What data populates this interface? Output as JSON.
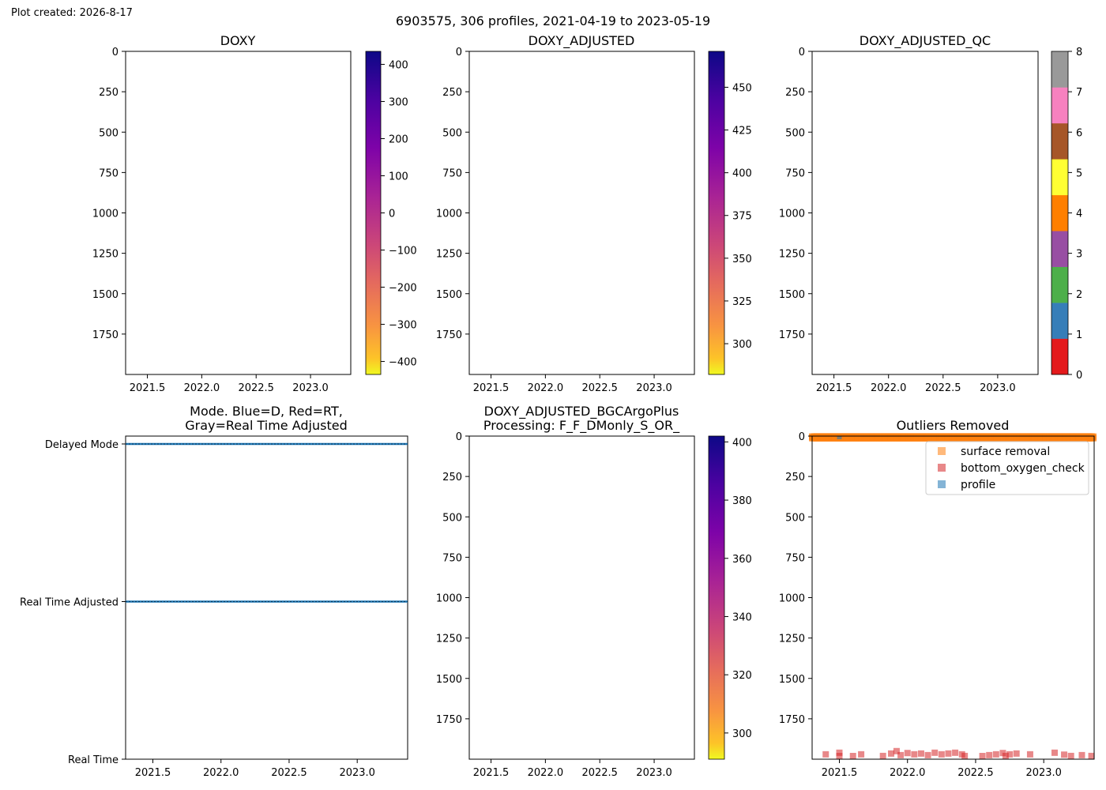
{
  "created": "Plot created: 2026-8-17",
  "suptitle": "6903575, 306 profiles, 2021-04-19 to 2023-05-19",
  "colors": {
    "mode_line": "#1f77b4",
    "surface_removal": "#ff7f0e",
    "bottom_oxygen_check": "#d62728",
    "profile": "#1f77b4",
    "qc_palette": [
      "#e41a1c",
      "#377eb8",
      "#4daf4a",
      "#984ea3",
      "#ff7f00",
      "#ffff33",
      "#a65628",
      "#f781bf",
      "#999999"
    ]
  },
  "chart_data": [
    {
      "id": "doxy",
      "type": "heatmap",
      "title": "DOXY",
      "x_ticks": [
        "2021.5",
        "2022.0",
        "2022.5",
        "2023.0"
      ],
      "x_tick_values": [
        2021.5,
        2022.0,
        2022.5,
        2023.0
      ],
      "xlim": [
        2021.3,
        2023.37
      ],
      "y_ticks": [
        "0",
        "250",
        "500",
        "750",
        "1000",
        "1250",
        "1500",
        "1750"
      ],
      "y_tick_values": [
        0,
        250,
        500,
        750,
        1000,
        1250,
        1500,
        1750
      ],
      "ylim": [
        2000,
        0
      ],
      "colorbar": {
        "colormap": "plasma_r",
        "range": [
          -435,
          435
        ],
        "ticks": [
          "400",
          "300",
          "200",
          "100",
          "0",
          "−100",
          "−200",
          "−300",
          "−400"
        ],
        "tick_values": [
          400,
          300,
          200,
          100,
          0,
          -100,
          -200,
          -300,
          -400
        ]
      }
    },
    {
      "id": "doxy_adjusted",
      "type": "heatmap",
      "title": "DOXY_ADJUSTED",
      "x_ticks": [
        "2021.5",
        "2022.0",
        "2022.5",
        "2023.0"
      ],
      "x_tick_values": [
        2021.5,
        2022.0,
        2022.5,
        2023.0
      ],
      "xlim": [
        2021.3,
        2023.37
      ],
      "y_ticks": [
        "0",
        "250",
        "500",
        "750",
        "1000",
        "1250",
        "1500",
        "1750"
      ],
      "y_tick_values": [
        0,
        250,
        500,
        750,
        1000,
        1250,
        1500,
        1750
      ],
      "ylim": [
        2000,
        0
      ],
      "colorbar": {
        "colormap": "plasma_r",
        "range": [
          282,
          471
        ],
        "ticks": [
          "450",
          "425",
          "400",
          "375",
          "350",
          "325",
          "300"
        ],
        "tick_values": [
          450,
          425,
          400,
          375,
          350,
          325,
          300
        ]
      }
    },
    {
      "id": "doxy_adjusted_qc",
      "type": "heatmap",
      "title": "DOXY_ADJUSTED_QC",
      "x_ticks": [
        "2021.5",
        "2022.0",
        "2022.5",
        "2023.0"
      ],
      "x_tick_values": [
        2021.5,
        2022.0,
        2022.5,
        2023.0
      ],
      "xlim": [
        2021.3,
        2023.37
      ],
      "y_ticks": [
        "0",
        "250",
        "500",
        "750",
        "1000",
        "1250",
        "1500",
        "1750"
      ],
      "y_tick_values": [
        0,
        250,
        500,
        750,
        1000,
        1250,
        1500,
        1750
      ],
      "ylim": [
        2000,
        0
      ],
      "colorbar": {
        "colormap": "discrete",
        "range": [
          0,
          8
        ],
        "ticks": [
          "8",
          "7",
          "6",
          "5",
          "4",
          "3",
          "2",
          "1",
          "0"
        ],
        "tick_values": [
          8,
          7,
          6,
          5,
          4,
          3,
          2,
          1,
          0
        ]
      }
    },
    {
      "id": "mode",
      "type": "line",
      "title_lines": [
        "Mode. Blue=D, Red=RT,",
        "Gray=Real Time Adjusted"
      ],
      "x_ticks": [
        "2021.5",
        "2022.0",
        "2022.5",
        "2023.0"
      ],
      "x_tick_values": [
        2021.5,
        2022.0,
        2022.5,
        2023.0
      ],
      "xlim": [
        2021.3,
        2023.37
      ],
      "y_ticks": [
        "Delayed Mode",
        "Real Time Adjusted",
        "Real Time"
      ],
      "y_tick_values": [
        2,
        1,
        0
      ],
      "ylim": [
        0,
        2.05
      ],
      "series": [
        {
          "y": 2,
          "x_range": [
            2021.3,
            2023.37
          ]
        },
        {
          "y": 1,
          "x_range": [
            2021.3,
            2023.37
          ]
        }
      ]
    },
    {
      "id": "bgcargoplus",
      "type": "heatmap",
      "title_lines": [
        "DOXY_ADJUSTED_BGCArgoPlus",
        "Processing: F_F_DMonly_S_OR_"
      ],
      "x_ticks": [
        "2021.5",
        "2022.0",
        "2022.5",
        "2023.0"
      ],
      "x_tick_values": [
        2021.5,
        2022.0,
        2022.5,
        2023.0
      ],
      "xlim": [
        2021.3,
        2023.37
      ],
      "y_ticks": [
        "0",
        "250",
        "500",
        "750",
        "1000",
        "1250",
        "1500",
        "1750"
      ],
      "y_tick_values": [
        0,
        250,
        500,
        750,
        1000,
        1250,
        1500,
        1750
      ],
      "ylim": [
        2000,
        0
      ],
      "colorbar": {
        "colormap": "plasma_r",
        "range": [
          291,
          402
        ],
        "ticks": [
          "400",
          "380",
          "360",
          "340",
          "320",
          "300"
        ],
        "tick_values": [
          400,
          380,
          360,
          340,
          320,
          300
        ]
      }
    },
    {
      "id": "outliers",
      "type": "scatter",
      "title": "Outliers Removed",
      "x_ticks": [
        "2021.5",
        "2022.0",
        "2022.5",
        "2023.0"
      ],
      "x_tick_values": [
        2021.5,
        2022.0,
        2022.5,
        2023.0
      ],
      "xlim": [
        2021.3,
        2023.37
      ],
      "y_ticks": [
        "0",
        "250",
        "500",
        "750",
        "1000",
        "1250",
        "1500",
        "1750"
      ],
      "y_tick_values": [
        0,
        250,
        500,
        750,
        1000,
        1250,
        1500,
        1750
      ],
      "ylim": [
        2000,
        0
      ],
      "legend": {
        "position": "upper-right",
        "entries": [
          "surface removal",
          "bottom_oxygen_check",
          "profile"
        ]
      },
      "series": [
        {
          "name": "surface removal",
          "x_range": [
            2021.3,
            2023.37
          ],
          "depths": [
            2,
            6,
            10,
            14
          ]
        },
        {
          "name": "bottom_oxygen_check",
          "points": [
            [
              2021.4,
              1970
            ],
            [
              2021.5,
              1960
            ],
            [
              2021.5,
              1985
            ],
            [
              2021.6,
              1985
            ],
            [
              2021.66,
              1970
            ],
            [
              2021.82,
              1980
            ],
            [
              2021.88,
              1965
            ],
            [
              2021.92,
              1950
            ],
            [
              2021.95,
              1975
            ],
            [
              2022.0,
              1962
            ],
            [
              2022.05,
              1970
            ],
            [
              2022.1,
              1965
            ],
            [
              2022.15,
              1975
            ],
            [
              2022.2,
              1960
            ],
            [
              2022.25,
              1970
            ],
            [
              2022.3,
              1965
            ],
            [
              2022.35,
              1960
            ],
            [
              2022.4,
              1970
            ],
            [
              2022.42,
              1980
            ],
            [
              2022.55,
              1985
            ],
            [
              2022.6,
              1975
            ],
            [
              2022.65,
              1970
            ],
            [
              2022.7,
              1962
            ],
            [
              2022.72,
              1980
            ],
            [
              2022.75,
              1970
            ],
            [
              2022.8,
              1965
            ],
            [
              2022.9,
              1970
            ],
            [
              2023.08,
              1960
            ],
            [
              2023.15,
              1972
            ],
            [
              2023.2,
              1980
            ],
            [
              2023.28,
              1975
            ],
            [
              2023.35,
              1980
            ]
          ]
        },
        {
          "name": "profile",
          "points": [
            [
              2021.5,
              0
            ]
          ]
        }
      ]
    }
  ]
}
